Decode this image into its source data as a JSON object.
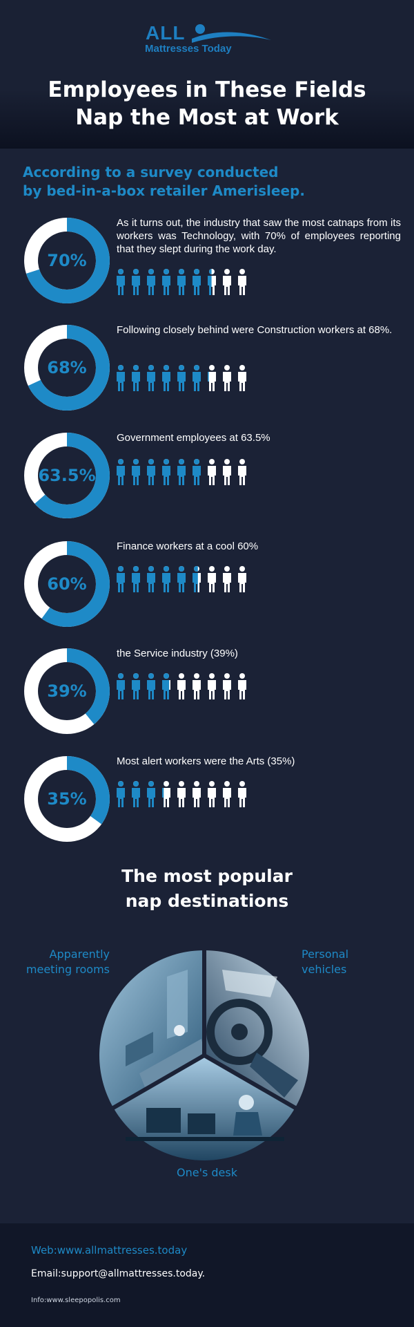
{
  "brand": {
    "logo_main": "ALL",
    "logo_sub": "Mattresses Today"
  },
  "title": {
    "line1": "Employees in These Fields",
    "line2": "Nap the Most at Work"
  },
  "intro": {
    "line1": "According to a survey conducted",
    "line2": "by bed-in-a-box retailer Amerisleep."
  },
  "colors": {
    "accent": "#1e8ac7",
    "background": "#1b2236",
    "ring_track": "#ffffff"
  },
  "stats": [
    {
      "label": "70%",
      "value": 70,
      "text": "As it turns out, the industry that saw the most catnaps from its workers was Technology, with 70% of employees reporting that they slept during the work day."
    },
    {
      "label": "68%",
      "value": 68,
      "text": "Following closely behind were Construction workers at 68%."
    },
    {
      "label": "63.5%",
      "value": 63.5,
      "text": "Government employees at 63.5%"
    },
    {
      "label": "60%",
      "value": 60,
      "text": "Finance workers at a cool 60%"
    },
    {
      "label": "39%",
      "value": 39,
      "text": "the Service industry (39%)"
    },
    {
      "label": "35%",
      "value": 35,
      "text": "Most alert workers were the Arts (35%)"
    }
  ],
  "destinations": {
    "heading_line1": "The most popular",
    "heading_line2": "nap destinations",
    "meeting_line1": "Apparently",
    "meeting_line2": "meeting rooms",
    "vehicles_line1": "Personal",
    "vehicles_line2": "vehicles",
    "desk": "One's desk"
  },
  "footer": {
    "web": "Web:www.allmattresses.today",
    "email": "Email:support@allmattresses.today.",
    "info": "Info:www.sleepopolis.com"
  }
}
